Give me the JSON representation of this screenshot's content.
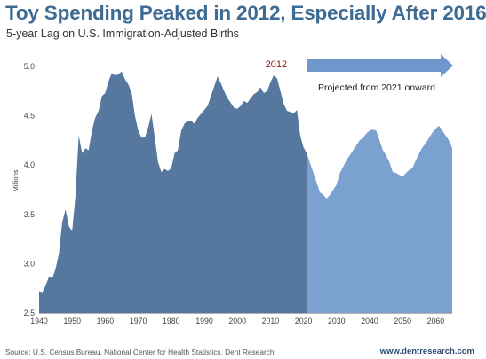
{
  "header": {
    "title": "Toy Spending Peaked in 2012, Especially After 2016",
    "subtitle": "5-year Lag on U.S. Immigration-Adjusted  Births"
  },
  "footer": {
    "source": "Source: U.S. Census Bureau, National Center for Health Statistics, Dent Research",
    "website": "www.dentresearch.com"
  },
  "colors": {
    "title": "#3e6b94",
    "historical_fill": "#56789e",
    "projected_fill": "#7ba1d0",
    "arrow": "#6f97cb",
    "peak_label": "#8b1a1a"
  },
  "chart_data": {
    "type": "area",
    "ylabel": "Millions",
    "xlabel": "",
    "xlim": [
      1940,
      2065
    ],
    "ylim": [
      2.5,
      5.0
    ],
    "x_ticks": [
      1940,
      1950,
      1960,
      1970,
      1980,
      1990,
      2000,
      2010,
      2020,
      2030,
      2040,
      2050,
      2060
    ],
    "y_ticks": [
      "2.5",
      "3.0",
      "3.5",
      "4.0",
      "4.5",
      "5.0"
    ],
    "grid": false,
    "annotations": {
      "peak_label": "2012",
      "peak_year": 2012,
      "projection_label": "Projected from 2021 onward",
      "projection_start": 2021
    },
    "series": [
      {
        "x": [
          1940,
          1941,
          1942,
          1943,
          1944,
          1945,
          1946,
          1947,
          1948,
          1949,
          1950,
          1951,
          1952,
          1953,
          1954,
          1955,
          1956,
          1957,
          1958,
          1959,
          1960,
          1961,
          1962,
          1963,
          1964,
          1965,
          1966,
          1967,
          1968,
          1969,
          1970,
          1971,
          1972,
          1973,
          1974,
          1975,
          1976,
          1977,
          1978,
          1979,
          1980,
          1981,
          1982,
          1983,
          1984,
          1985,
          1986,
          1987,
          1988,
          1989,
          1990,
          1991,
          1992,
          1993,
          1994,
          1995,
          1996,
          1997,
          1998,
          1999,
          2000,
          2001,
          2002,
          2003,
          2004,
          2005,
          2006,
          2007,
          2008,
          2009,
          2010,
          2011,
          2012,
          2013,
          2014,
          2015,
          2016,
          2017,
          2018,
          2019,
          2020,
          2021
        ],
        "values": [
          2.72,
          2.71,
          2.78,
          2.87,
          2.85,
          2.95,
          3.1,
          3.42,
          3.55,
          3.38,
          3.33,
          3.68,
          4.3,
          4.12,
          4.17,
          4.15,
          4.35,
          4.48,
          4.55,
          4.7,
          4.73,
          4.85,
          4.93,
          4.91,
          4.92,
          4.95,
          4.87,
          4.82,
          4.73,
          4.5,
          4.35,
          4.28,
          4.28,
          4.38,
          4.52,
          4.28,
          4.03,
          3.93,
          3.96,
          3.94,
          3.97,
          4.12,
          4.15,
          4.35,
          4.42,
          4.45,
          4.45,
          4.42,
          4.48,
          4.52,
          4.56,
          4.6,
          4.7,
          4.8,
          4.9,
          4.83,
          4.75,
          4.68,
          4.63,
          4.58,
          4.57,
          4.6,
          4.65,
          4.63,
          4.68,
          4.72,
          4.74,
          4.79,
          4.73,
          4.75,
          4.84,
          4.91,
          4.88,
          4.75,
          4.62,
          4.55,
          4.54,
          4.52,
          4.56,
          4.3,
          4.18,
          4.12
        ]
      },
      {
        "x": [
          2021,
          2022,
          2023,
          2024,
          2025,
          2026,
          2027,
          2028,
          2029,
          2030,
          2031,
          2032,
          2033,
          2034,
          2035,
          2036,
          2037,
          2038,
          2039,
          2040,
          2041,
          2042,
          2043,
          2044,
          2045,
          2046,
          2047,
          2048,
          2049,
          2050,
          2051,
          2052,
          2053,
          2054,
          2055,
          2056,
          2057,
          2058,
          2059,
          2060,
          2061,
          2062,
          2063,
          2064,
          2065
        ],
        "values": [
          4.12,
          4.02,
          3.92,
          3.82,
          3.72,
          3.7,
          3.66,
          3.7,
          3.75,
          3.8,
          3.92,
          3.98,
          4.05,
          4.1,
          4.15,
          4.2,
          4.25,
          4.28,
          4.32,
          4.35,
          4.36,
          4.35,
          4.25,
          4.15,
          4.1,
          4.03,
          3.93,
          3.92,
          3.9,
          3.88,
          3.92,
          3.95,
          3.97,
          4.05,
          4.12,
          4.18,
          4.22,
          4.28,
          4.33,
          4.37,
          4.4,
          4.35,
          4.3,
          4.25,
          4.17
        ]
      }
    ]
  }
}
